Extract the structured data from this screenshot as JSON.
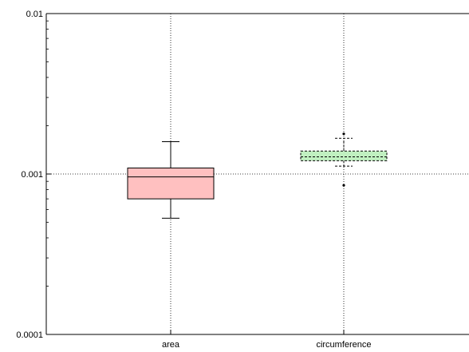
{
  "chart_data": {
    "type": "box",
    "title": "",
    "xlabel": "",
    "ylabel": "",
    "y_scale": "log",
    "ylim": [
      0.0001,
      0.01
    ],
    "y_ticks": [
      {
        "value": 0.01,
        "label": "0.01"
      },
      {
        "value": 0.001,
        "label": "0.001"
      },
      {
        "value": 0.0001,
        "label": "0.0001"
      }
    ],
    "grid": true,
    "categories": [
      "area",
      "circumference"
    ],
    "boxes": [
      {
        "category": "area",
        "whisker_low": 0.00053,
        "q1": 0.0007,
        "median": 0.00096,
        "q3": 0.00109,
        "whisker_high": 0.00159,
        "outliers": [],
        "fill": "#ffc0c0",
        "stroke": "#000000",
        "dashed": false
      },
      {
        "category": "circumference",
        "whisker_low": 0.00112,
        "q1": 0.00121,
        "median": 0.00128,
        "q3": 0.00139,
        "whisker_high": 0.00167,
        "outliers": [
          0.00085,
          0.00178
        ],
        "fill": "#c0f0c0",
        "stroke": "#000000",
        "dashed": true
      }
    ]
  }
}
